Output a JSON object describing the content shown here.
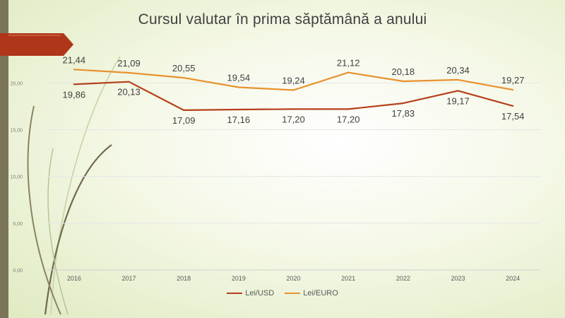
{
  "slide": {
    "title": "Cursul valutar în prima săptămână a anului",
    "colors": {
      "accent_bar": "#7a7559",
      "ribbon": "#b0361a"
    }
  },
  "chart_data": {
    "type": "line",
    "title": "Cursul valutar în prima săptămână a anului",
    "xlabel": "",
    "ylabel": "",
    "categories": [
      "2016",
      "2017",
      "2018",
      "2019",
      "2020",
      "2021",
      "2022",
      "2023",
      "2024"
    ],
    "ylim": [
      0,
      25
    ],
    "yticks": [
      "0,00",
      "5,00",
      "10,00",
      "15,00",
      "20,00"
    ],
    "grid": true,
    "legend_position": "bottom",
    "series": [
      {
        "name": "Lei/USD",
        "color": "#b5401a",
        "values": [
          19.86,
          20.13,
          17.09,
          17.16,
          17.2,
          17.2,
          17.83,
          19.17,
          17.54
        ],
        "labels": [
          "19,86",
          "20,13",
          "17,09",
          "17,16",
          "17,20",
          "17,20",
          "17,83",
          "19,17",
          "17,54"
        ]
      },
      {
        "name": "Lei/EURO",
        "color": "#e8922e",
        "values": [
          21.44,
          21.09,
          20.55,
          19.54,
          19.24,
          21.12,
          20.18,
          20.34,
          19.27
        ],
        "labels": [
          "21,44",
          "21,09",
          "20,55",
          "19,54",
          "19,24",
          "21,12",
          "20,18",
          "20,34",
          "19,27"
        ]
      }
    ]
  }
}
